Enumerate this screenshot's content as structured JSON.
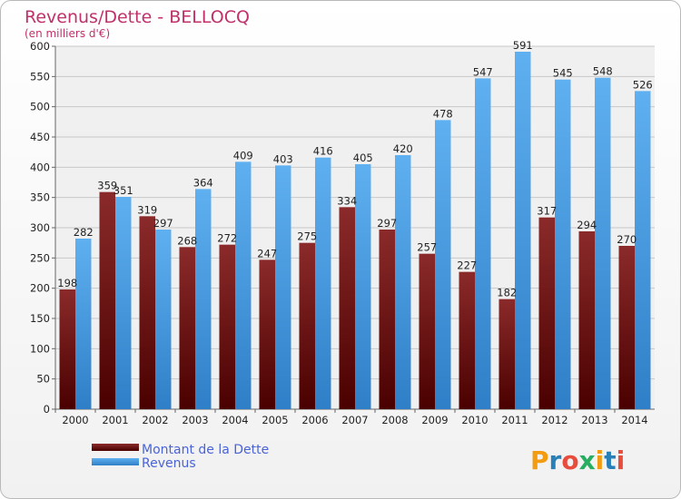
{
  "chart_data": {
    "type": "bar",
    "title": "Revenus/Dette - BELLOCQ",
    "subtitle": "(en milliers d'€)",
    "categories": [
      "2000",
      "2001",
      "2002",
      "2003",
      "2004",
      "2005",
      "2006",
      "2007",
      "2008",
      "2009",
      "2010",
      "2011",
      "2012",
      "2013",
      "2014"
    ],
    "series": [
      {
        "name": "Montant de la Dette",
        "values": [
          198,
          359,
          319,
          268,
          272,
          247,
          275,
          334,
          297,
          257,
          227,
          182,
          317,
          294,
          270
        ],
        "color": "#7a1010"
      },
      {
        "name": "Revenus",
        "values": [
          282,
          351,
          297,
          364,
          409,
          403,
          416,
          405,
          420,
          478,
          547,
          591,
          545,
          548,
          526
        ],
        "color": "#4fa3e8"
      }
    ],
    "ylim": [
      0,
      600
    ],
    "yticks": [
      0,
      50,
      100,
      150,
      200,
      250,
      300,
      350,
      400,
      450,
      500,
      550,
      600
    ],
    "grid": true,
    "legend": "bottom-left",
    "data_labels": true
  },
  "logo": {
    "letters": [
      "P",
      "r",
      "o",
      "x",
      "i",
      "t",
      "i"
    ],
    "colors": [
      "#f39c12",
      "#2980b9",
      "#e74c3c",
      "#27ae60",
      "#f39c12",
      "#2980b9",
      "#e74c3c"
    ]
  }
}
